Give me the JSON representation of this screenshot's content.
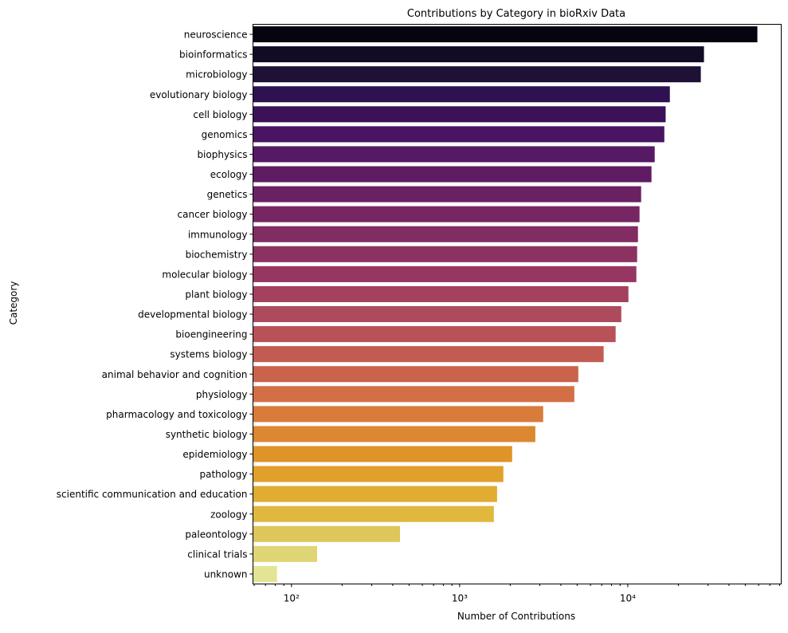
{
  "chart_data": {
    "type": "bar",
    "orientation": "horizontal",
    "title": "Contributions by Category in bioRxiv Data",
    "xlabel": "Number of Contributions",
    "ylabel": "Category",
    "xscale": "log",
    "xlim": [
      59,
      81800
    ],
    "x_ticks": [
      {
        "value": 100,
        "base": "10",
        "exp": "2"
      },
      {
        "value": 1000,
        "base": "10",
        "exp": "3"
      },
      {
        "value": 10000,
        "base": "10",
        "exp": "4"
      }
    ],
    "grid": false,
    "categories": [
      "neuroscience",
      "bioinformatics",
      "microbiology",
      "evolutionary biology",
      "cell biology",
      "genomics",
      "biophysics",
      "ecology",
      "genetics",
      "cancer biology",
      "immunology",
      "biochemistry",
      "molecular biology",
      "plant biology",
      "developmental biology",
      "bioengineering",
      "systems biology",
      "animal behavior and cognition",
      "physiology",
      "pharmacology and toxicology",
      "synthetic biology",
      "epidemiology",
      "pathology",
      "scientific communication and education",
      "zoology",
      "paleontology",
      "clinical trials",
      "unknown"
    ],
    "values": [
      59000,
      28400,
      27200,
      17800,
      16800,
      16500,
      14460,
      13840,
      12010,
      11750,
      11500,
      11370,
      11250,
      10090,
      9150,
      8470,
      7190,
      5080,
      4810,
      3140,
      2820,
      2053,
      1820,
      1670,
      1598,
      442,
      142,
      82
    ],
    "colors": [
      "#05040f",
      "#110c24",
      "#1f1035",
      "#2d1150",
      "#3b1158",
      "#491462",
      "#561a64",
      "#5f1c63",
      "#6a2163",
      "#762763",
      "#812c62",
      "#8c3262",
      "#963761",
      "#a3415e",
      "#ad4a5c",
      "#b85258",
      "#c25c52",
      "#ca634c",
      "#d36f45",
      "#d87b3b",
      "#dc8731",
      "#de9428",
      "#e0a02a",
      "#e0ac32",
      "#e0b83e",
      "#dfc65a",
      "#e0d574",
      "#e3e594"
    ]
  }
}
